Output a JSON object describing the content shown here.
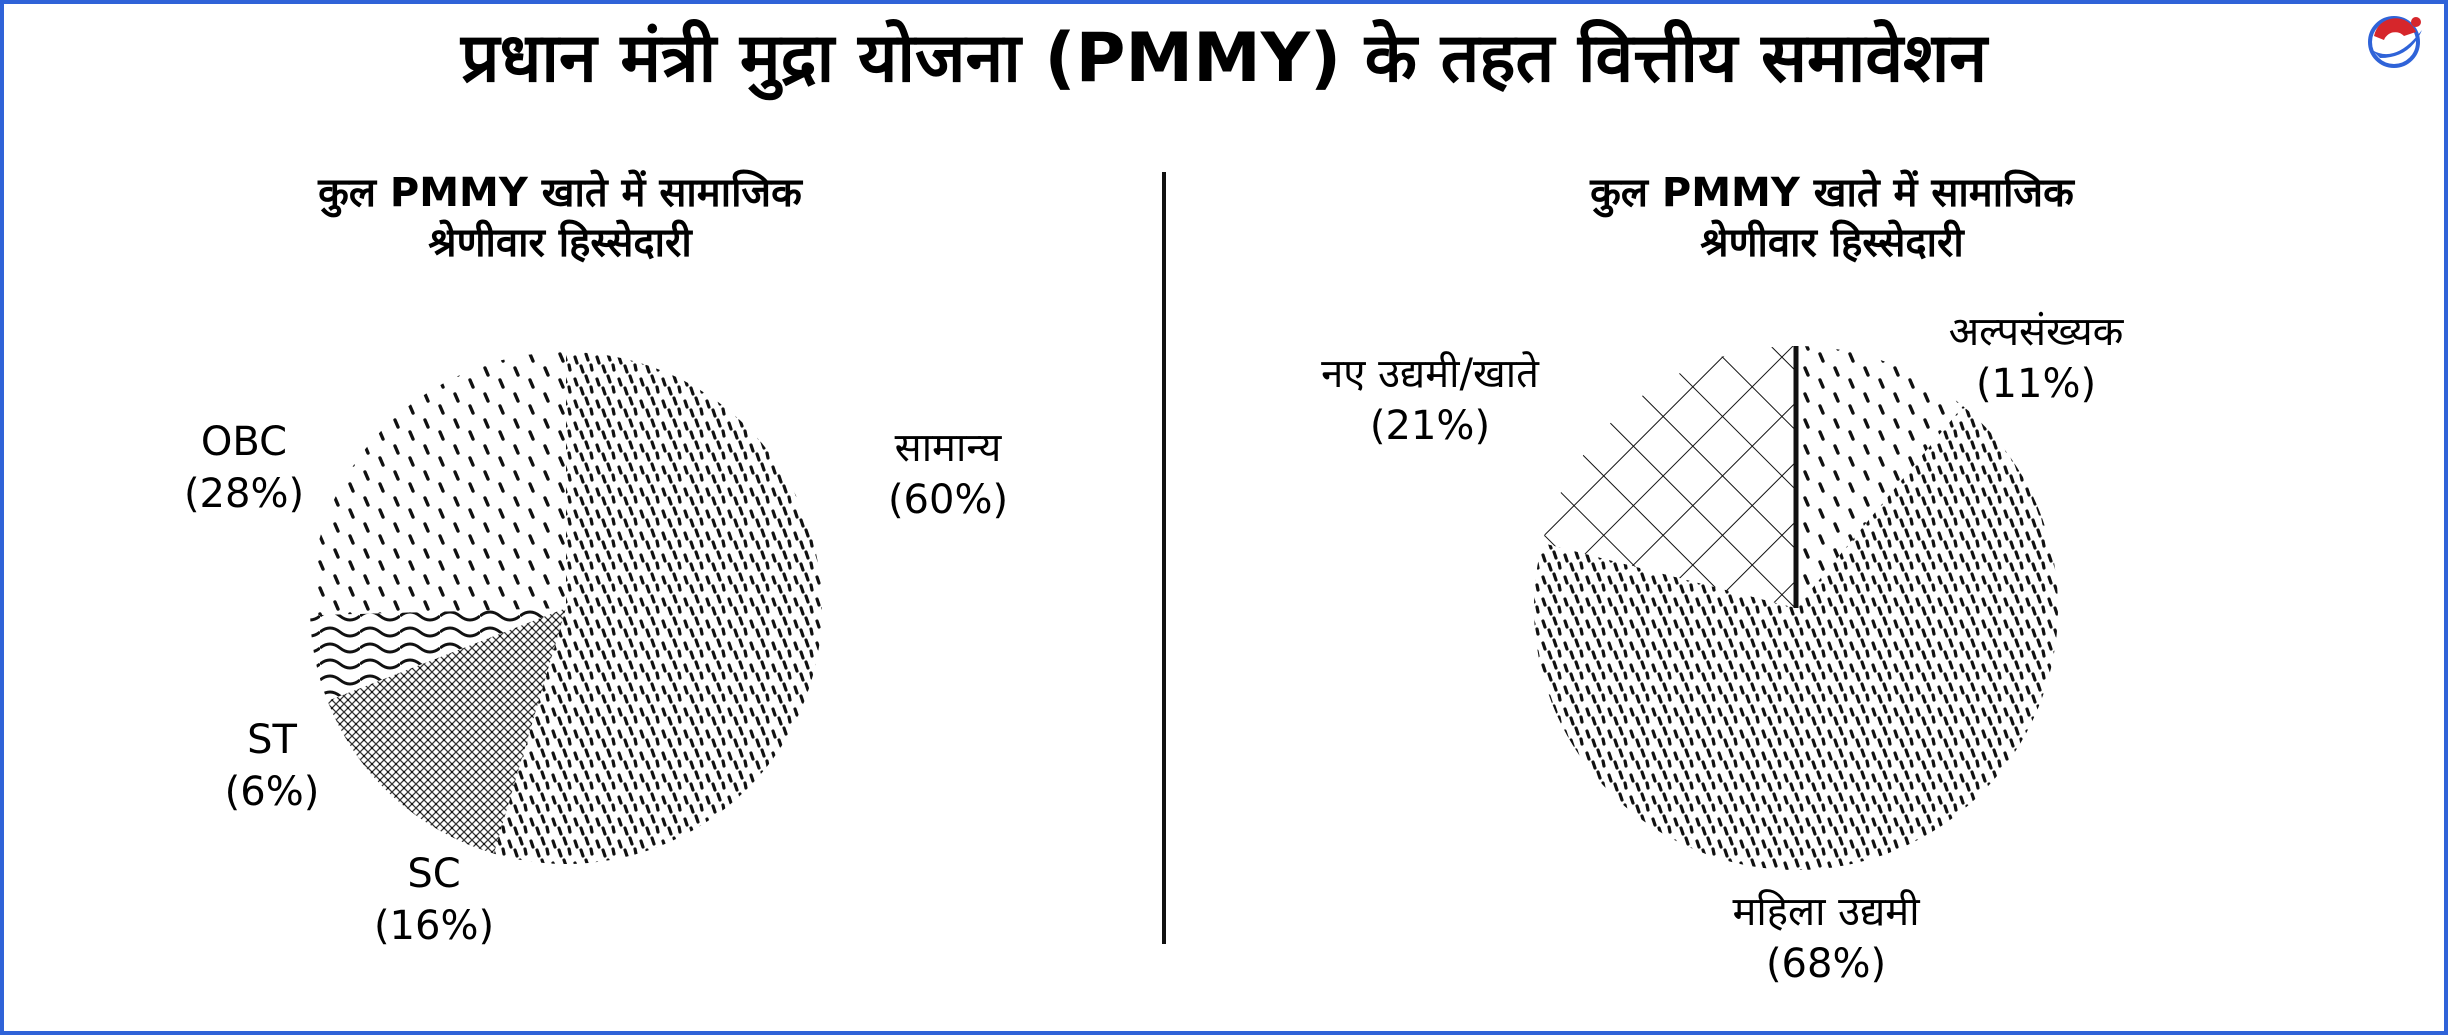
{
  "page": {
    "title": "प्रधान मंत्री मुद्रा योजना (PMMY) के तहत वित्तीय समावेशन",
    "brand_colors": {
      "frame": "#2f63d8",
      "logo_red": "#d6262b",
      "logo_blue": "#2f63d8"
    },
    "logo_icon": "logo-icon"
  },
  "chart_data": [
    {
      "type": "pie",
      "title_line1": "कुल PMMY खाते में सामाजिक",
      "title_line2": "श्रेणीवार हिस्सेदारी",
      "slices": [
        {
          "label": "सामान्य",
          "value": 60,
          "value_text": "(60%)",
          "pattern": "dense-dashes"
        },
        {
          "label": "SC",
          "value": 16,
          "value_text": "(16%)",
          "pattern": "hexagon-mesh"
        },
        {
          "label": "ST",
          "value": 6,
          "value_text": "(6%)",
          "pattern": "waves"
        },
        {
          "label": "OBC",
          "value": 28,
          "value_text": "(28%)",
          "pattern": "sparse-dashes"
        }
      ]
    },
    {
      "type": "pie",
      "title_line1": "कुल PMMY खाते में सामाजिक",
      "title_line2": "श्रेणीवार हिस्सेदारी",
      "slices": [
        {
          "label": "अल्पसंख्यक",
          "value": 11,
          "value_text": "(11%)",
          "pattern": "sparse-dashes"
        },
        {
          "label": "महिला उद्यमी",
          "value": 68,
          "value_text": "(68%)",
          "pattern": "dense-dashes"
        },
        {
          "label": "नए उद्यमी/खाते",
          "value": 21,
          "value_text": "(21%)",
          "pattern": "crosshatch"
        }
      ]
    }
  ]
}
